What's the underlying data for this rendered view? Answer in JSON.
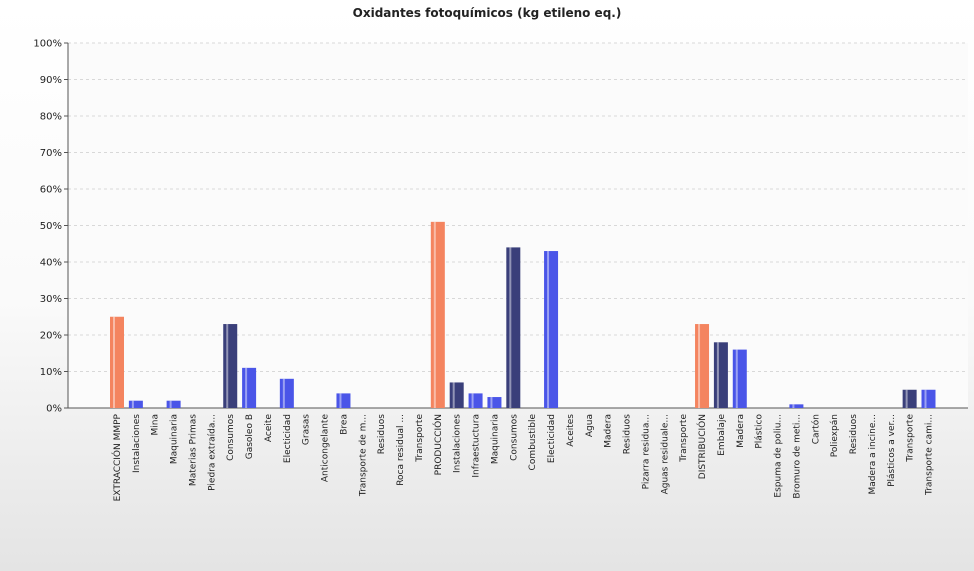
{
  "chart_data": {
    "type": "bar",
    "title": "Oxidantes fotoquímicos (kg etileno eq.)",
    "xlabel": "",
    "ylabel": "",
    "ylim": [
      0,
      100
    ],
    "yticks": [
      "0%",
      "10%",
      "20%",
      "30%",
      "40%",
      "50%",
      "60%",
      "70%",
      "80%",
      "90%",
      "100%"
    ],
    "grid": true,
    "legend": "none",
    "colors": {
      "stage": "#f4845f",
      "sub_dark": "#3a3f7a",
      "sub_blue": "#4a55e8",
      "axis": "#555555",
      "grid": "#d8d8d8"
    },
    "categories": [
      "EXTRACCIÓN MMPP",
      "Instalaciones",
      "Mina",
      "Maquinaria",
      "Materias Primas",
      "Piedra extraída...",
      "Consumos",
      "Gasoleo B",
      "Aceite",
      "Electicidad",
      "Grasas",
      "Anticongelante",
      "Brea",
      "Transporte de m...",
      "Residuos",
      "Roca residual ...",
      "Transporte",
      "PRODUCCIÓN",
      "Instalaciones",
      "Infraestuctura",
      "Maquinaria",
      "Consumos",
      "Combustible",
      "Electicidad",
      "Aceites",
      "Agua",
      "Madera",
      "Residuos",
      "Pizarra residua...",
      "Aguas residuale...",
      "Transporte",
      "DISTRIBUCIÓN",
      "Embalaje",
      "Madera",
      "Plástico",
      "Espuma de poliu...",
      "Bromuro de meti...",
      "Cartón",
      "Poliexpán",
      "Residuos",
      "Madera a incine...",
      "Plásticos a ver...",
      "Transporte",
      "Transporte cami..."
    ],
    "values": [
      25,
      2,
      0,
      2,
      0,
      0,
      23,
      11,
      0,
      8,
      0,
      0,
      4,
      0,
      0,
      0,
      0,
      51,
      7,
      4,
      3,
      44,
      0,
      43,
      0,
      0,
      0,
      0,
      0,
      0,
      0,
      23,
      18,
      16,
      0,
      0,
      1,
      0,
      0,
      0,
      0,
      0,
      5,
      5
    ],
    "bar_styles": [
      "stage",
      "sub_blue",
      "sub_blue",
      "sub_blue",
      "sub_blue",
      "sub_blue",
      "sub_dark",
      "sub_blue",
      "sub_blue",
      "sub_blue",
      "sub_blue",
      "sub_blue",
      "sub_blue",
      "sub_blue",
      "sub_blue",
      "sub_blue",
      "sub_blue",
      "stage",
      "sub_dark",
      "sub_blue",
      "sub_blue",
      "sub_dark",
      "sub_blue",
      "sub_blue",
      "sub_blue",
      "sub_blue",
      "sub_blue",
      "sub_blue",
      "sub_blue",
      "sub_blue",
      "sub_blue",
      "stage",
      "sub_dark",
      "sub_blue",
      "sub_blue",
      "sub_blue",
      "sub_blue",
      "sub_blue",
      "sub_blue",
      "sub_blue",
      "sub_blue",
      "sub_blue",
      "sub_dark",
      "sub_blue"
    ]
  }
}
